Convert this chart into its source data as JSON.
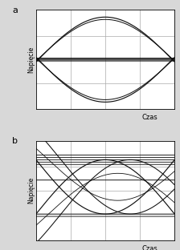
{
  "background_color": "#d8d8d8",
  "panel_bg": "#ffffff",
  "line_color": "#111111",
  "label_a": "a",
  "label_b": "b",
  "xlabel": "Czas",
  "ylabel": "Napięcie",
  "grid_color": "#aaaaaa",
  "figsize": [
    2.24,
    3.12
  ],
  "dpi": 100,
  "lw": 0.85
}
